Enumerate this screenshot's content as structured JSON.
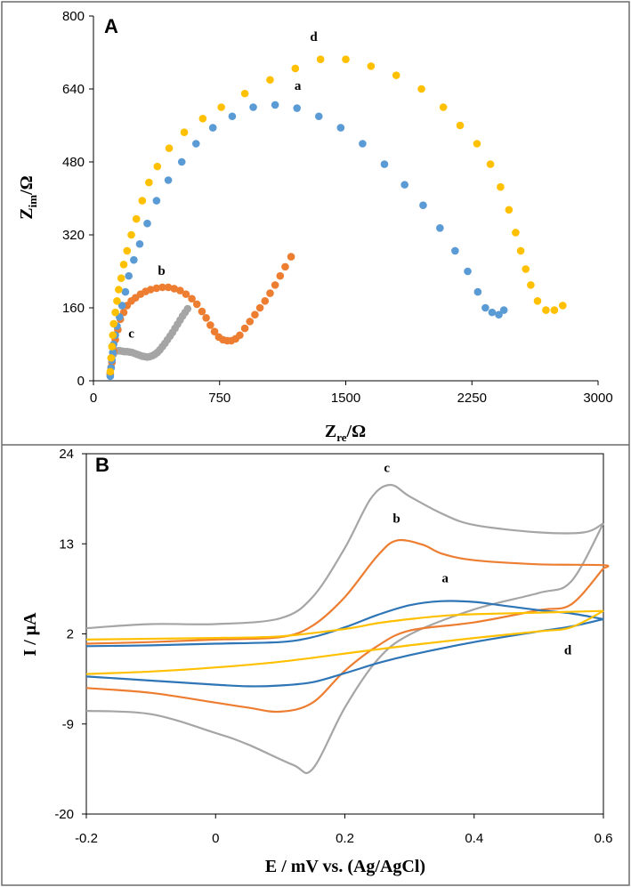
{
  "figure": {
    "border_color": "#6b6b6b"
  },
  "colors": {
    "a": "#5b9bd5",
    "b": "#ed7d31",
    "c": "#a5a5a5",
    "d": "#ffc000",
    "cv_a": "#2e75b6"
  },
  "chart_data": [
    {
      "panel": "A",
      "type": "scatter",
      "title": "",
      "xlabel": "Z",
      "xlabel_sub": "re",
      "xlabel_unit": "/Ω",
      "ylabel": "Z",
      "ylabel_sub": "im",
      "ylabel_unit": "/Ω",
      "xlim": [
        0,
        3000
      ],
      "ylim": [
        0,
        800
      ],
      "xticks": [
        "0",
        "750",
        "1500",
        "2250",
        "3000"
      ],
      "yticks": [
        "0",
        "160",
        "320",
        "480",
        "640",
        "800"
      ],
      "xtick_values": [
        0,
        750,
        1500,
        2250,
        3000
      ],
      "ytick_values": [
        0,
        160,
        320,
        480,
        640,
        800
      ],
      "series": [
        {
          "name": "a",
          "label_at": [
            1215,
            638
          ],
          "x": [
            100,
            105,
            110,
            115,
            120,
            130,
            140,
            155,
            170,
            190,
            210,
            240,
            275,
            320,
            375,
            445,
            525,
            610,
            710,
            825,
            950,
            1080,
            1210,
            1340,
            1470,
            1600,
            1730,
            1850,
            1960,
            2060,
            2150,
            2225,
            2285,
            2330,
            2370,
            2410,
            2440
          ],
          "y": [
            10,
            28,
            45,
            62,
            80,
            100,
            120,
            140,
            165,
            195,
            230,
            265,
            300,
            345,
            395,
            440,
            480,
            520,
            555,
            580,
            600,
            605,
            598,
            580,
            555,
            520,
            475,
            430,
            385,
            335,
            285,
            240,
            195,
            160,
            150,
            145,
            155
          ]
        },
        {
          "name": "b",
          "label_at": [
            405,
            232
          ],
          "x": [
            100,
            110,
            120,
            130,
            145,
            160,
            180,
            200,
            225,
            250,
            280,
            310,
            340,
            375,
            410,
            445,
            480,
            515,
            550,
            585,
            615,
            645,
            670,
            695,
            720,
            745,
            770,
            795,
            820,
            845,
            870,
            900,
            930,
            960,
            990,
            1020,
            1050,
            1080,
            1110,
            1140,
            1175
          ],
          "y": [
            15,
            40,
            65,
            90,
            112,
            135,
            150,
            165,
            175,
            182,
            190,
            196,
            200,
            203,
            205,
            205,
            202,
            198,
            190,
            180,
            168,
            152,
            138,
            122,
            108,
            96,
            90,
            88,
            88,
            92,
            100,
            115,
            130,
            145,
            160,
            175,
            192,
            210,
            230,
            250,
            272
          ]
        },
        {
          "name": "c",
          "label_at": [
            225,
            95
          ],
          "x": [
            100,
            105,
            110,
            118,
            126,
            135,
            145,
            155,
            170,
            185,
            200,
            215,
            230,
            245,
            260,
            275,
            290,
            305,
            320,
            335,
            350,
            365,
            380,
            395,
            410,
            425,
            440,
            455,
            470,
            485,
            500,
            515,
            530,
            545,
            560
          ],
          "y": [
            15,
            30,
            45,
            58,
            63,
            65,
            66,
            66,
            65,
            64,
            64,
            63,
            62,
            60,
            58,
            56,
            54,
            53,
            52,
            53,
            55,
            58,
            62,
            68,
            75,
            82,
            90,
            98,
            106,
            115,
            124,
            133,
            142,
            150,
            158
          ]
        },
        {
          "name": "d",
          "label_at": [
            1310,
            745
          ],
          "x": [
            100,
            105,
            110,
            115,
            120,
            130,
            140,
            150,
            165,
            180,
            200,
            225,
            255,
            290,
            330,
            380,
            450,
            540,
            650,
            760,
            900,
            1050,
            1200,
            1350,
            1500,
            1650,
            1800,
            1950,
            2080,
            2180,
            2280,
            2360,
            2420,
            2470,
            2510,
            2540,
            2570,
            2600,
            2640,
            2690,
            2740,
            2790
          ],
          "y": [
            20,
            50,
            75,
            100,
            125,
            150,
            175,
            200,
            225,
            255,
            285,
            320,
            355,
            395,
            435,
            470,
            510,
            545,
            575,
            600,
            630,
            660,
            685,
            705,
            705,
            690,
            670,
            640,
            600,
            560,
            520,
            475,
            425,
            375,
            325,
            285,
            245,
            210,
            175,
            155,
            155,
            165
          ]
        }
      ]
    },
    {
      "panel": "B",
      "type": "line",
      "title": "",
      "xlabel": "E / mV vs. (Ag/AgCl)",
      "ylabel": "I / μA",
      "xlim": [
        -0.2,
        0.6
      ],
      "ylim": [
        -20,
        24
      ],
      "xticks": [
        "-0.2",
        "0",
        "0.2",
        "0.4",
        "0.6"
      ],
      "yticks": [
        "-20",
        "-9",
        "2",
        "13",
        "24"
      ],
      "xtick_values": [
        -0.2,
        0,
        0.2,
        0.4,
        0.6
      ],
      "ytick_values": [
        -20,
        -9,
        2,
        13,
        24
      ],
      "series": [
        {
          "name": "a",
          "color_key": "cv_a",
          "label_at": [
            0.355,
            8.3
          ],
          "forward": [
            [
              -0.2,
              0.5
            ],
            [
              -0.1,
              0.6
            ],
            [
              0,
              0.8
            ],
            [
              0.1,
              1.0
            ],
            [
              0.15,
              1.6
            ],
            [
              0.2,
              2.8
            ],
            [
              0.25,
              4.3
            ],
            [
              0.3,
              5.5
            ],
            [
              0.35,
              6.0
            ],
            [
              0.4,
              5.9
            ],
            [
              0.45,
              5.4
            ],
            [
              0.5,
              4.9
            ],
            [
              0.55,
              4.5
            ],
            [
              0.6,
              3.8
            ]
          ],
          "reverse": [
            [
              0.6,
              3.8
            ],
            [
              0.55,
              2.9
            ],
            [
              0.5,
              2.3
            ],
            [
              0.4,
              1.0
            ],
            [
              0.3,
              -0.6
            ],
            [
              0.25,
              -1.6
            ],
            [
              0.2,
              -2.8
            ],
            [
              0.15,
              -3.9
            ],
            [
              0.1,
              -4.3
            ],
            [
              0.05,
              -4.4
            ],
            [
              0,
              -4.2
            ],
            [
              -0.1,
              -3.7
            ],
            [
              -0.2,
              -3.2
            ]
          ]
        },
        {
          "name": "b",
          "color_key": "b",
          "label_at": [
            0.28,
            15.6
          ],
          "forward": [
            [
              -0.2,
              0.8
            ],
            [
              -0.1,
              1.0
            ],
            [
              0,
              1.3
            ],
            [
              0.1,
              1.6
            ],
            [
              0.15,
              3.0
            ],
            [
              0.2,
              6.5
            ],
            [
              0.25,
              11.5
            ],
            [
              0.28,
              13.4
            ],
            [
              0.32,
              12.9
            ],
            [
              0.35,
              11.8
            ],
            [
              0.4,
              11.0
            ],
            [
              0.5,
              10.5
            ],
            [
              0.6,
              10.4
            ],
            [
              0.6,
              10.0
            ]
          ],
          "reverse": [
            [
              0.6,
              10.0
            ],
            [
              0.55,
              5.6
            ],
            [
              0.5,
              4.9
            ],
            [
              0.4,
              3.4
            ],
            [
              0.3,
              2.4
            ],
            [
              0.25,
              0.5
            ],
            [
              0.2,
              -2.5
            ],
            [
              0.15,
              -6.4
            ],
            [
              0.1,
              -7.5
            ],
            [
              0.05,
              -7.0
            ],
            [
              0,
              -6.4
            ],
            [
              -0.1,
              -5.2
            ],
            [
              -0.2,
              -4.6
            ]
          ]
        },
        {
          "name": "c",
          "color_key": "c",
          "label_at": [
            0.265,
            21.8
          ],
          "forward": [
            [
              -0.2,
              2.7
            ],
            [
              -0.1,
              3.2
            ],
            [
              0,
              3.2
            ],
            [
              0.1,
              3.9
            ],
            [
              0.15,
              6.5
            ],
            [
              0.2,
              12.5
            ],
            [
              0.24,
              18.5
            ],
            [
              0.27,
              20.2
            ],
            [
              0.3,
              18.8
            ],
            [
              0.35,
              16.7
            ],
            [
              0.4,
              15.3
            ],
            [
              0.5,
              14.4
            ],
            [
              0.57,
              14.4
            ],
            [
              0.6,
              15.5
            ]
          ],
          "reverse": [
            [
              0.6,
              15.5
            ],
            [
              0.55,
              8.4
            ],
            [
              0.5,
              7.0
            ],
            [
              0.4,
              5.0
            ],
            [
              0.3,
              1.9
            ],
            [
              0.25,
              -1.2
            ],
            [
              0.2,
              -7.0
            ],
            [
              0.15,
              -14.5
            ],
            [
              0.12,
              -14.0
            ],
            [
              0.05,
              -11.5
            ],
            [
              0,
              -10.1
            ],
            [
              -0.1,
              -7.8
            ],
            [
              -0.2,
              -7.4
            ]
          ]
        },
        {
          "name": "d",
          "color_key": "d",
          "label_at": [
            0.545,
            -0.5
          ],
          "forward": [
            [
              -0.2,
              1.3
            ],
            [
              -0.1,
              1.4
            ],
            [
              0,
              1.5
            ],
            [
              0.1,
              1.7
            ],
            [
              0.2,
              2.6
            ],
            [
              0.25,
              3.3
            ],
            [
              0.3,
              3.8
            ],
            [
              0.35,
              4.2
            ],
            [
              0.4,
              4.4
            ],
            [
              0.5,
              4.6
            ],
            [
              0.6,
              4.8
            ]
          ],
          "reverse": [
            [
              0.6,
              4.8
            ],
            [
              0.55,
              2.8
            ],
            [
              0.5,
              2.3
            ],
            [
              0.4,
              1.5
            ],
            [
              0.3,
              0.6
            ],
            [
              0.2,
              -0.4
            ],
            [
              0.1,
              -1.4
            ],
            [
              0,
              -2.1
            ],
            [
              -0.1,
              -2.6
            ],
            [
              -0.2,
              -2.9
            ]
          ]
        }
      ]
    }
  ]
}
